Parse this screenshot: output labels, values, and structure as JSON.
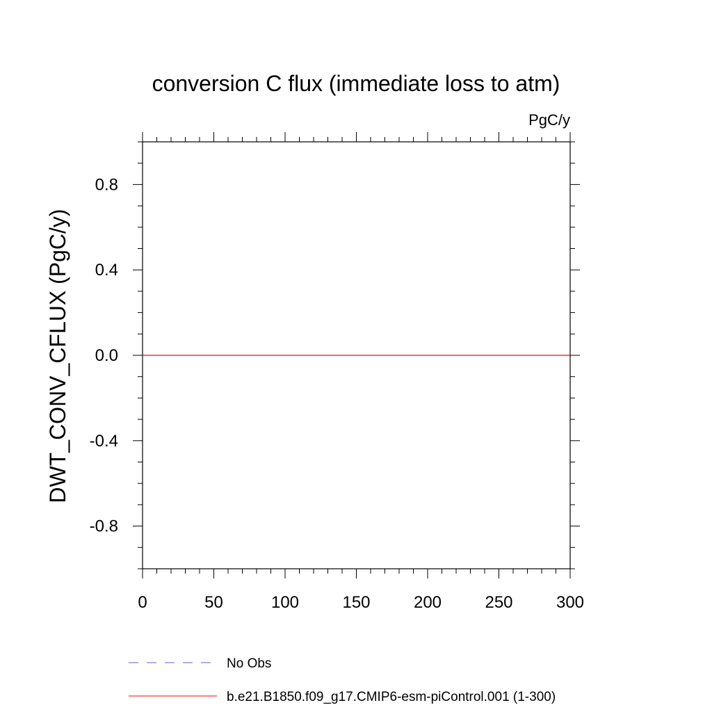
{
  "chart_data": {
    "type": "line",
    "title": "conversion C flux (immediate loss to atm)",
    "units": "PgC/y",
    "xlabel": "",
    "ylabel": "DWT_CONV_CFLUX  (PgC/y)",
    "xlim": [
      0,
      300
    ],
    "ylim": [
      -1.0,
      1.0
    ],
    "xticks": [
      0,
      50,
      100,
      150,
      200,
      250,
      300
    ],
    "xtick_labels": [
      "0",
      "50",
      "100",
      "150",
      "200",
      "250",
      "300"
    ],
    "yticks": [
      -0.8,
      -0.4,
      0.0,
      0.4,
      0.8
    ],
    "ytick_labels": [
      "-0.8",
      "-0.4",
      "0.0",
      "0.4",
      "0.8"
    ],
    "grid": false,
    "legend_position": "bottom",
    "series": [
      {
        "name": "No Obs",
        "color": "#6a5acd",
        "style": "dashed",
        "x": [],
        "y": []
      },
      {
        "name": "b.e21.B1850.f09_g17.CMIP6-esm-piControl.001 (1-300)",
        "color": "#ff0000",
        "style": "solid",
        "x": [
          0,
          300
        ],
        "y": [
          0.0,
          0.0
        ]
      }
    ]
  }
}
